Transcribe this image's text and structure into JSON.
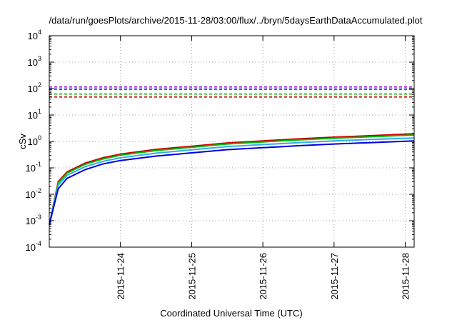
{
  "chart_data": {
    "type": "line",
    "title": "/data/run/goesPlots/archive/2015-11-28/03:00/flux/../bryn/5daysEarthDataAccumulated.plot",
    "xlabel": "Coordinated Universal Time (UTC)",
    "ylabel": "cSv",
    "yscale": "log",
    "ylim": [
      0.0001,
      10000
    ],
    "xlim": [
      "2015-11-23T00:00",
      "2015-11-28T03:00"
    ],
    "x_tick_labels": [
      "2015-11-24",
      "2015-11-25",
      "2015-11-26",
      "2015-11-27",
      "2015-11-28"
    ],
    "y_tick_labels": [
      {
        "base": "10",
        "exp": "-4"
      },
      {
        "base": "10",
        "exp": "-3"
      },
      {
        "base": "10",
        "exp": "-2"
      },
      {
        "base": "10",
        "exp": "-1"
      },
      {
        "base": "10",
        "exp": "0"
      },
      {
        "base": "10",
        "exp": "1"
      },
      {
        "base": "10",
        "exp": "2"
      },
      {
        "base": "10",
        "exp": "3"
      },
      {
        "base": "10",
        "exp": "4"
      }
    ],
    "grid": true,
    "legend": "none",
    "accumulated_series": [
      {
        "color": "#cc0000",
        "x": [
          "2015-11-23T00:00",
          "2015-11-23T03:00",
          "2015-11-23T06:00",
          "2015-11-23T12:00",
          "2015-11-23T18:00",
          "2015-11-24T00:00",
          "2015-11-24T12:00",
          "2015-11-25T00:00",
          "2015-11-25T12:00",
          "2015-11-26T00:00",
          "2015-11-26T12:00",
          "2015-11-27T00:00",
          "2015-11-27T12:00",
          "2015-11-28T03:00"
        ],
        "y": [
          0.0007,
          0.03,
          0.07,
          0.15,
          0.24,
          0.33,
          0.5,
          0.66,
          0.88,
          1.05,
          1.25,
          1.45,
          1.65,
          1.95
        ]
      },
      {
        "color": "#00bb00",
        "x": [
          "2015-11-23T00:00",
          "2015-11-23T03:00",
          "2015-11-23T06:00",
          "2015-11-23T12:00",
          "2015-11-23T18:00",
          "2015-11-24T00:00",
          "2015-11-24T12:00",
          "2015-11-25T00:00",
          "2015-11-25T12:00",
          "2015-11-26T00:00",
          "2015-11-26T12:00",
          "2015-11-27T00:00",
          "2015-11-27T12:00",
          "2015-11-28T03:00"
        ],
        "y": [
          0.0007,
          0.027,
          0.063,
          0.135,
          0.215,
          0.3,
          0.45,
          0.6,
          0.8,
          0.96,
          1.14,
          1.32,
          1.5,
          1.75
        ]
      },
      {
        "color": "#33aaee",
        "x": [
          "2015-11-23T00:00",
          "2015-11-23T03:00",
          "2015-11-23T06:00",
          "2015-11-23T12:00",
          "2015-11-23T18:00",
          "2015-11-24T00:00",
          "2015-11-24T12:00",
          "2015-11-25T00:00",
          "2015-11-25T12:00",
          "2015-11-26T00:00",
          "2015-11-26T12:00",
          "2015-11-27T00:00",
          "2015-11-27T12:00",
          "2015-11-28T03:00"
        ],
        "y": [
          0.0007,
          0.022,
          0.052,
          0.11,
          0.175,
          0.24,
          0.36,
          0.48,
          0.64,
          0.76,
          0.9,
          1.05,
          1.18,
          1.35
        ]
      },
      {
        "color": "#0000dd",
        "x": [
          "2015-11-23T00:00",
          "2015-11-23T03:00",
          "2015-11-23T06:00",
          "2015-11-23T12:00",
          "2015-11-23T18:00",
          "2015-11-24T00:00",
          "2015-11-24T12:00",
          "2015-11-25T00:00",
          "2015-11-25T12:00",
          "2015-11-26T00:00",
          "2015-11-26T12:00",
          "2015-11-27T00:00",
          "2015-11-27T12:00",
          "2015-11-28T03:00"
        ],
        "y": [
          0.0007,
          0.016,
          0.04,
          0.085,
          0.14,
          0.19,
          0.28,
          0.37,
          0.49,
          0.58,
          0.69,
          0.8,
          0.9,
          1.05
        ]
      }
    ],
    "threshold_lines": [
      {
        "color": "#9900cc",
        "y": 115,
        "style": "dashed"
      },
      {
        "color": "#0000dd",
        "y": 95,
        "style": "dashed"
      },
      {
        "color": "#00bb00",
        "y": 62,
        "style": "dashed"
      },
      {
        "color": "#cc0000",
        "y": 48,
        "style": "dashed"
      }
    ]
  }
}
